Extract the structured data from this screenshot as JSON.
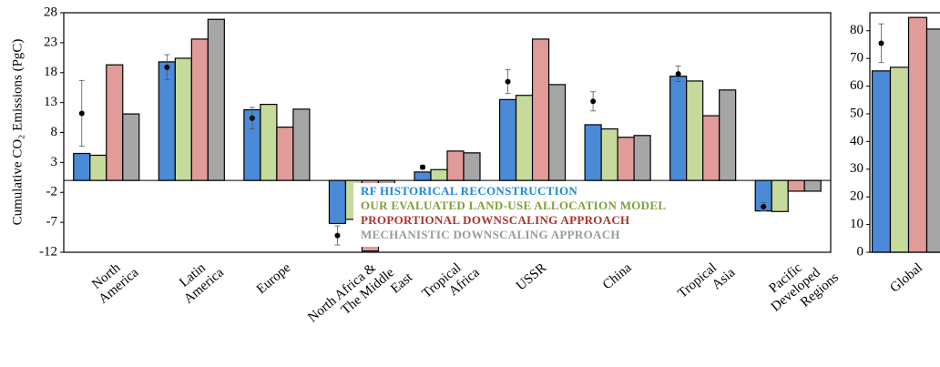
{
  "chart_data": [
    {
      "type": "bar",
      "ylabel": "Cumulative CO₂ Emissions (PgC)",
      "categories": [
        [
          "North",
          "America"
        ],
        [
          "Latin",
          "America"
        ],
        [
          "Europe"
        ],
        [
          "North Africa &",
          "The Middle",
          "East"
        ],
        [
          "Tropical",
          "Africa"
        ],
        [
          "USSR"
        ],
        [
          "China"
        ],
        [
          "Tropical",
          "Asia"
        ],
        [
          "Pacific",
          "Developed",
          "Regions"
        ]
      ],
      "series": [
        {
          "name": "RF HISTORICAL RECONSTRUCTION",
          "color": "#4a8ad6",
          "legend_color": "#1e88d8",
          "values": [
            4.5,
            19.8,
            11.8,
            -7.2,
            1.4,
            13.5,
            9.3,
            17.4,
            -5.1
          ]
        },
        {
          "name": "OUR EVALUATED LAND-USE ALLOCATION MODEL",
          "color": "#c6da9c",
          "legend_color": "#7f9f3a",
          "values": [
            4.2,
            20.4,
            12.7,
            -6.5,
            1.8,
            14.2,
            8.6,
            16.6,
            -5.2
          ]
        },
        {
          "name": "PROPORTIONAL DOWNSCALING APPROACH",
          "color": "#e19b98",
          "legend_color": "#b0302e",
          "values": [
            19.3,
            23.6,
            8.9,
            -11.8,
            4.9,
            23.6,
            7.2,
            10.8,
            -1.8
          ]
        },
        {
          "name": "MECHANISTIC DOWNSCALING APPROACH",
          "color": "#a6a6a6",
          "legend_color": "#9a9a9a",
          "values": [
            11.1,
            26.9,
            11.9,
            -10.3,
            4.6,
            16.0,
            7.5,
            15.1,
            -1.8
          ]
        }
      ],
      "reference": {
        "values": [
          11.2,
          18.9,
          10.4,
          -9.2,
          2.2,
          16.5,
          13.2,
          17.8,
          -4.4
        ],
        "errors": [
          5.5,
          2.1,
          1.8,
          1.6,
          0.3,
          2.0,
          1.6,
          1.3,
          0.7
        ]
      },
      "ylim": [
        -12,
        28
      ],
      "yticks": [
        -12,
        -7,
        -2,
        3,
        8,
        13,
        18,
        23,
        28
      ],
      "legend": "lower center"
    },
    {
      "type": "bar",
      "categories": [
        [
          "Global"
        ]
      ],
      "series": [
        {
          "color": "#4a8ad6",
          "values": [
            65.5
          ]
        },
        {
          "color": "#c6da9c",
          "values": [
            66.8
          ]
        },
        {
          "color": "#e19b98",
          "values": [
            84.8
          ]
        },
        {
          "color": "#a6a6a6",
          "values": [
            80.6
          ]
        }
      ],
      "reference": {
        "values": [
          75.5
        ],
        "errors": [
          7.0
        ]
      },
      "ylim": [
        0,
        86.5
      ],
      "yticks": [
        0,
        10,
        20,
        30,
        40,
        50,
        60,
        70,
        80
      ]
    }
  ]
}
